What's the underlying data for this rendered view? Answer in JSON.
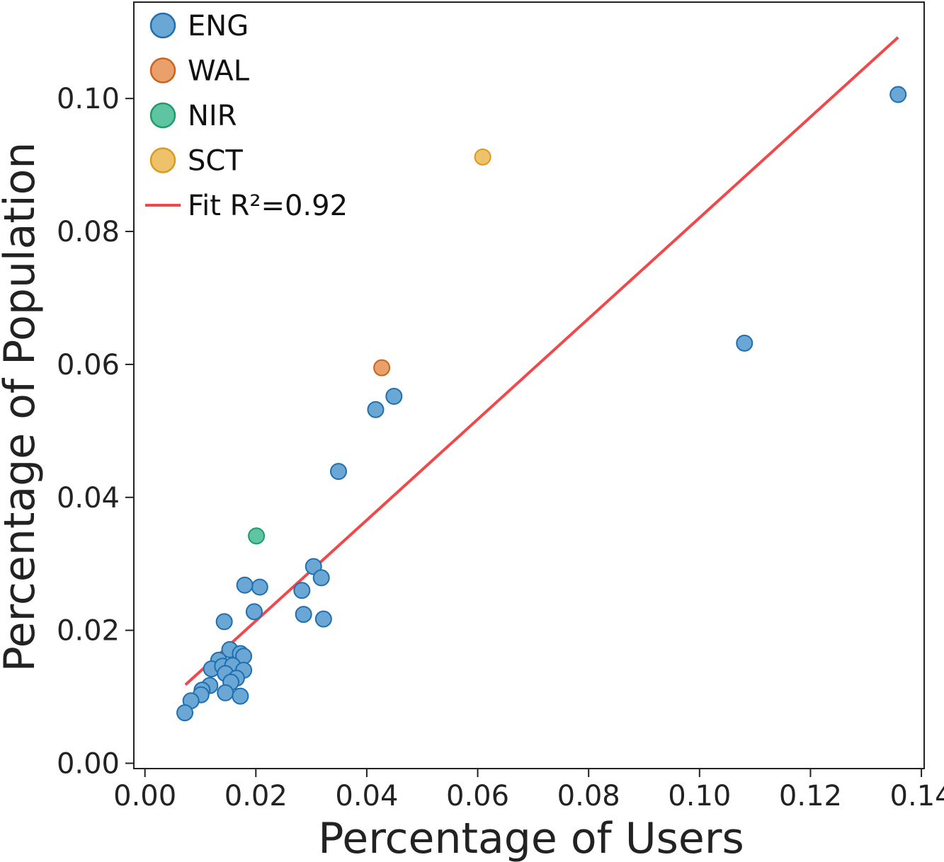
{
  "chart_data": {
    "type": "scatter",
    "title": "",
    "xlabel": "Percentage of Users",
    "ylabel": "Percentage of Population",
    "xlim": [
      -0.002,
      0.1405
    ],
    "ylim": [
      -0.0008,
      0.1145
    ],
    "xticks": [
      0.0,
      0.02,
      0.04,
      0.06,
      0.08,
      0.1,
      0.12,
      0.14
    ],
    "xtick_labels": [
      "0.00",
      "0.02",
      "0.04",
      "0.06",
      "0.08",
      "0.10",
      "0.12",
      "0.14"
    ],
    "yticks": [
      0.0,
      0.02,
      0.04,
      0.06,
      0.08,
      0.1
    ],
    "ytick_labels": [
      "0.00",
      "0.02",
      "0.04",
      "0.06",
      "0.08",
      "0.10"
    ],
    "grid": false,
    "legend_position": "top-left",
    "series": [
      {
        "name": "ENG",
        "fill": "#6aa7d4",
        "stroke": "#1f6fb0",
        "points": [
          [
            0.1358,
            0.1006
          ],
          [
            0.1081,
            0.0632
          ],
          [
            0.0449,
            0.0552
          ],
          [
            0.0416,
            0.0532
          ],
          [
            0.0349,
            0.0439
          ],
          [
            0.0304,
            0.0296
          ],
          [
            0.0318,
            0.0279
          ],
          [
            0.0283,
            0.026
          ],
          [
            0.0286,
            0.0224
          ],
          [
            0.0322,
            0.0217
          ],
          [
            0.0207,
            0.0265
          ],
          [
            0.018,
            0.0268
          ],
          [
            0.0197,
            0.0228
          ],
          [
            0.0143,
            0.0213
          ],
          [
            0.0153,
            0.0171
          ],
          [
            0.0172,
            0.0165
          ],
          [
            0.0178,
            0.0161
          ],
          [
            0.0133,
            0.0155
          ],
          [
            0.012,
            0.0142
          ],
          [
            0.014,
            0.0146
          ],
          [
            0.0158,
            0.0147
          ],
          [
            0.0178,
            0.014
          ],
          [
            0.0145,
            0.0135
          ],
          [
            0.0165,
            0.0128
          ],
          [
            0.0155,
            0.0122
          ],
          [
            0.0117,
            0.0117
          ],
          [
            0.0103,
            0.011
          ],
          [
            0.0101,
            0.0103
          ],
          [
            0.0145,
            0.0106
          ],
          [
            0.0172,
            0.0101
          ],
          [
            0.0083,
            0.0094
          ],
          [
            0.0072,
            0.0076
          ]
        ]
      },
      {
        "name": "WAL",
        "fill": "#e9a06b",
        "stroke": "#c8641e",
        "points": [
          [
            0.0427,
            0.0595
          ]
        ]
      },
      {
        "name": "NIR",
        "fill": "#5fc4a1",
        "stroke": "#1e9a6b",
        "points": [
          [
            0.0201,
            0.0342
          ]
        ]
      },
      {
        "name": "SCT",
        "fill": "#eec26b",
        "stroke": "#d99a1e",
        "points": [
          [
            0.0609,
            0.0912
          ]
        ]
      }
    ],
    "fit": {
      "name": "Fit R²=0.92",
      "color": "#f0484b",
      "x": [
        0.0073,
        0.1358
      ],
      "y": [
        0.0118,
        0.1092
      ]
    }
  }
}
